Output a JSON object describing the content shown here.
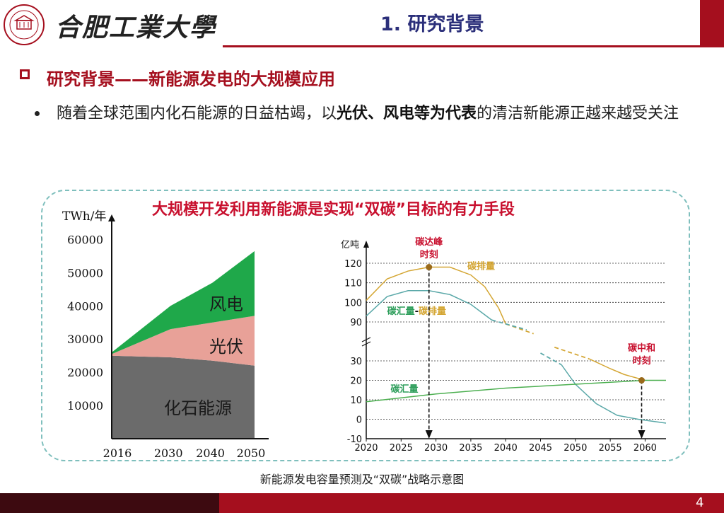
{
  "header": {
    "logo_icon": "university-seal-icon",
    "university_name": "合肥工業大學",
    "title": "1. 研究背景",
    "accent_color": "#a50f1e"
  },
  "section": {
    "title": "研究背景——新能源发电的大规模应用",
    "bullet": {
      "pre": "随着全球范围内化石能源的日益枯竭，以",
      "bold": "光伏、风电等为代表",
      "post": "的清洁新能源正越来越受关注"
    }
  },
  "panel": {
    "title": "大规模开发利用新能源是实现“双碳”目标的有力手段"
  },
  "caption": "新能源发电容量预测及“双碳”战略示意图",
  "page_number": "4",
  "chart_data": [
    {
      "type": "area",
      "ylabel": "TWh/年",
      "x": [
        2016,
        2030,
        2040,
        2050
      ],
      "xticks": [
        "2016",
        "2030",
        "2040",
        "2050"
      ],
      "yticks": [
        "10000",
        "20000",
        "30000",
        "40000",
        "50000",
        "60000"
      ],
      "ylim": [
        0,
        65000
      ],
      "series": [
        {
          "name": "化石能源",
          "color": "#6b6b6b",
          "values": [
            25000,
            24500,
            23500,
            22000
          ]
        },
        {
          "name": "光伏",
          "color": "#e8a198",
          "values": [
            500,
            8500,
            11500,
            15000
          ]
        },
        {
          "name": "风电",
          "color": "#1fa84a",
          "values": [
            500,
            7000,
            12000,
            19500
          ]
        }
      ]
    },
    {
      "type": "line",
      "ylabel": "亿吨",
      "xlim": [
        2020,
        2063
      ],
      "xticks": [
        "2020",
        "2025",
        "2030",
        "2035",
        "2040",
        "2045",
        "2050",
        "2055",
        "2060"
      ],
      "yticks_upper": [
        "90",
        "100",
        "110",
        "120"
      ],
      "yticks_lower": [
        "-10",
        "0",
        "10",
        "20",
        "30"
      ],
      "series": [
        {
          "name": "碳排量",
          "color": "#d4a633",
          "points": [
            [
              2020,
              101
            ],
            [
              2023,
              112
            ],
            [
              2026,
              116
            ],
            [
              2029,
              118
            ],
            [
              2032,
              118
            ],
            [
              2035,
              114
            ],
            [
              2037,
              108
            ],
            [
              2039,
              97
            ],
            [
              2040,
              89
            ]
          ],
          "dashed_points": [
            [
              2040,
              89
            ],
            [
              2044,
              84
            ]
          ],
          "dashed_points_lower": [
            [
              2047,
              37
            ],
            [
              2052,
              31
            ]
          ],
          "lower_points": [
            [
              2052,
              31
            ],
            [
              2055,
              26
            ],
            [
              2057,
              23
            ],
            [
              2060,
              20
            ]
          ]
        },
        {
          "name": "碳汇量-碳排量",
          "color": "#5aa8a8",
          "points": [
            [
              2020,
              93
            ],
            [
              2023,
              103
            ],
            [
              2026,
              106
            ],
            [
              2029,
              106
            ],
            [
              2032,
              104
            ],
            [
              2035,
              99
            ],
            [
              2038,
              91
            ]
          ],
          "dashed_points": [
            [
              2038,
              91
            ],
            [
              2043,
              86
            ]
          ],
          "dashed_points_lower": [
            [
              2045,
              34
            ],
            [
              2048,
              28
            ]
          ],
          "lower_points": [
            [
              2048,
              28
            ],
            [
              2050,
              18
            ],
            [
              2053,
              8
            ],
            [
              2056,
              2
            ],
            [
              2059,
              0
            ],
            [
              2063,
              -2
            ]
          ]
        },
        {
          "name": "碳汇量",
          "color": "#4caf50",
          "points": [
            [
              2020,
              9
            ],
            [
              2030,
              13
            ],
            [
              2040,
              16
            ],
            [
              2050,
              18
            ],
            [
              2060,
              20
            ],
            [
              2063,
              20
            ]
          ]
        }
      ],
      "annotations": [
        {
          "label": "碳达峰\n时刻",
          "x": 2029,
          "y": 118,
          "color": "#c8102e"
        },
        {
          "label": "碳中和\n时刻",
          "x": 2059.5,
          "y": 20,
          "color": "#c8102e"
        }
      ]
    }
  ]
}
